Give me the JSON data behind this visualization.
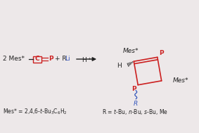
{
  "bg_color": "#ede8e9",
  "black": "#222222",
  "red": "#cc2020",
  "blue": "#3355bb",
  "fig_width": 2.83,
  "fig_height": 1.89,
  "dpi": 100,
  "xlim": [
    0,
    283
  ],
  "ylim": [
    0,
    189
  ]
}
